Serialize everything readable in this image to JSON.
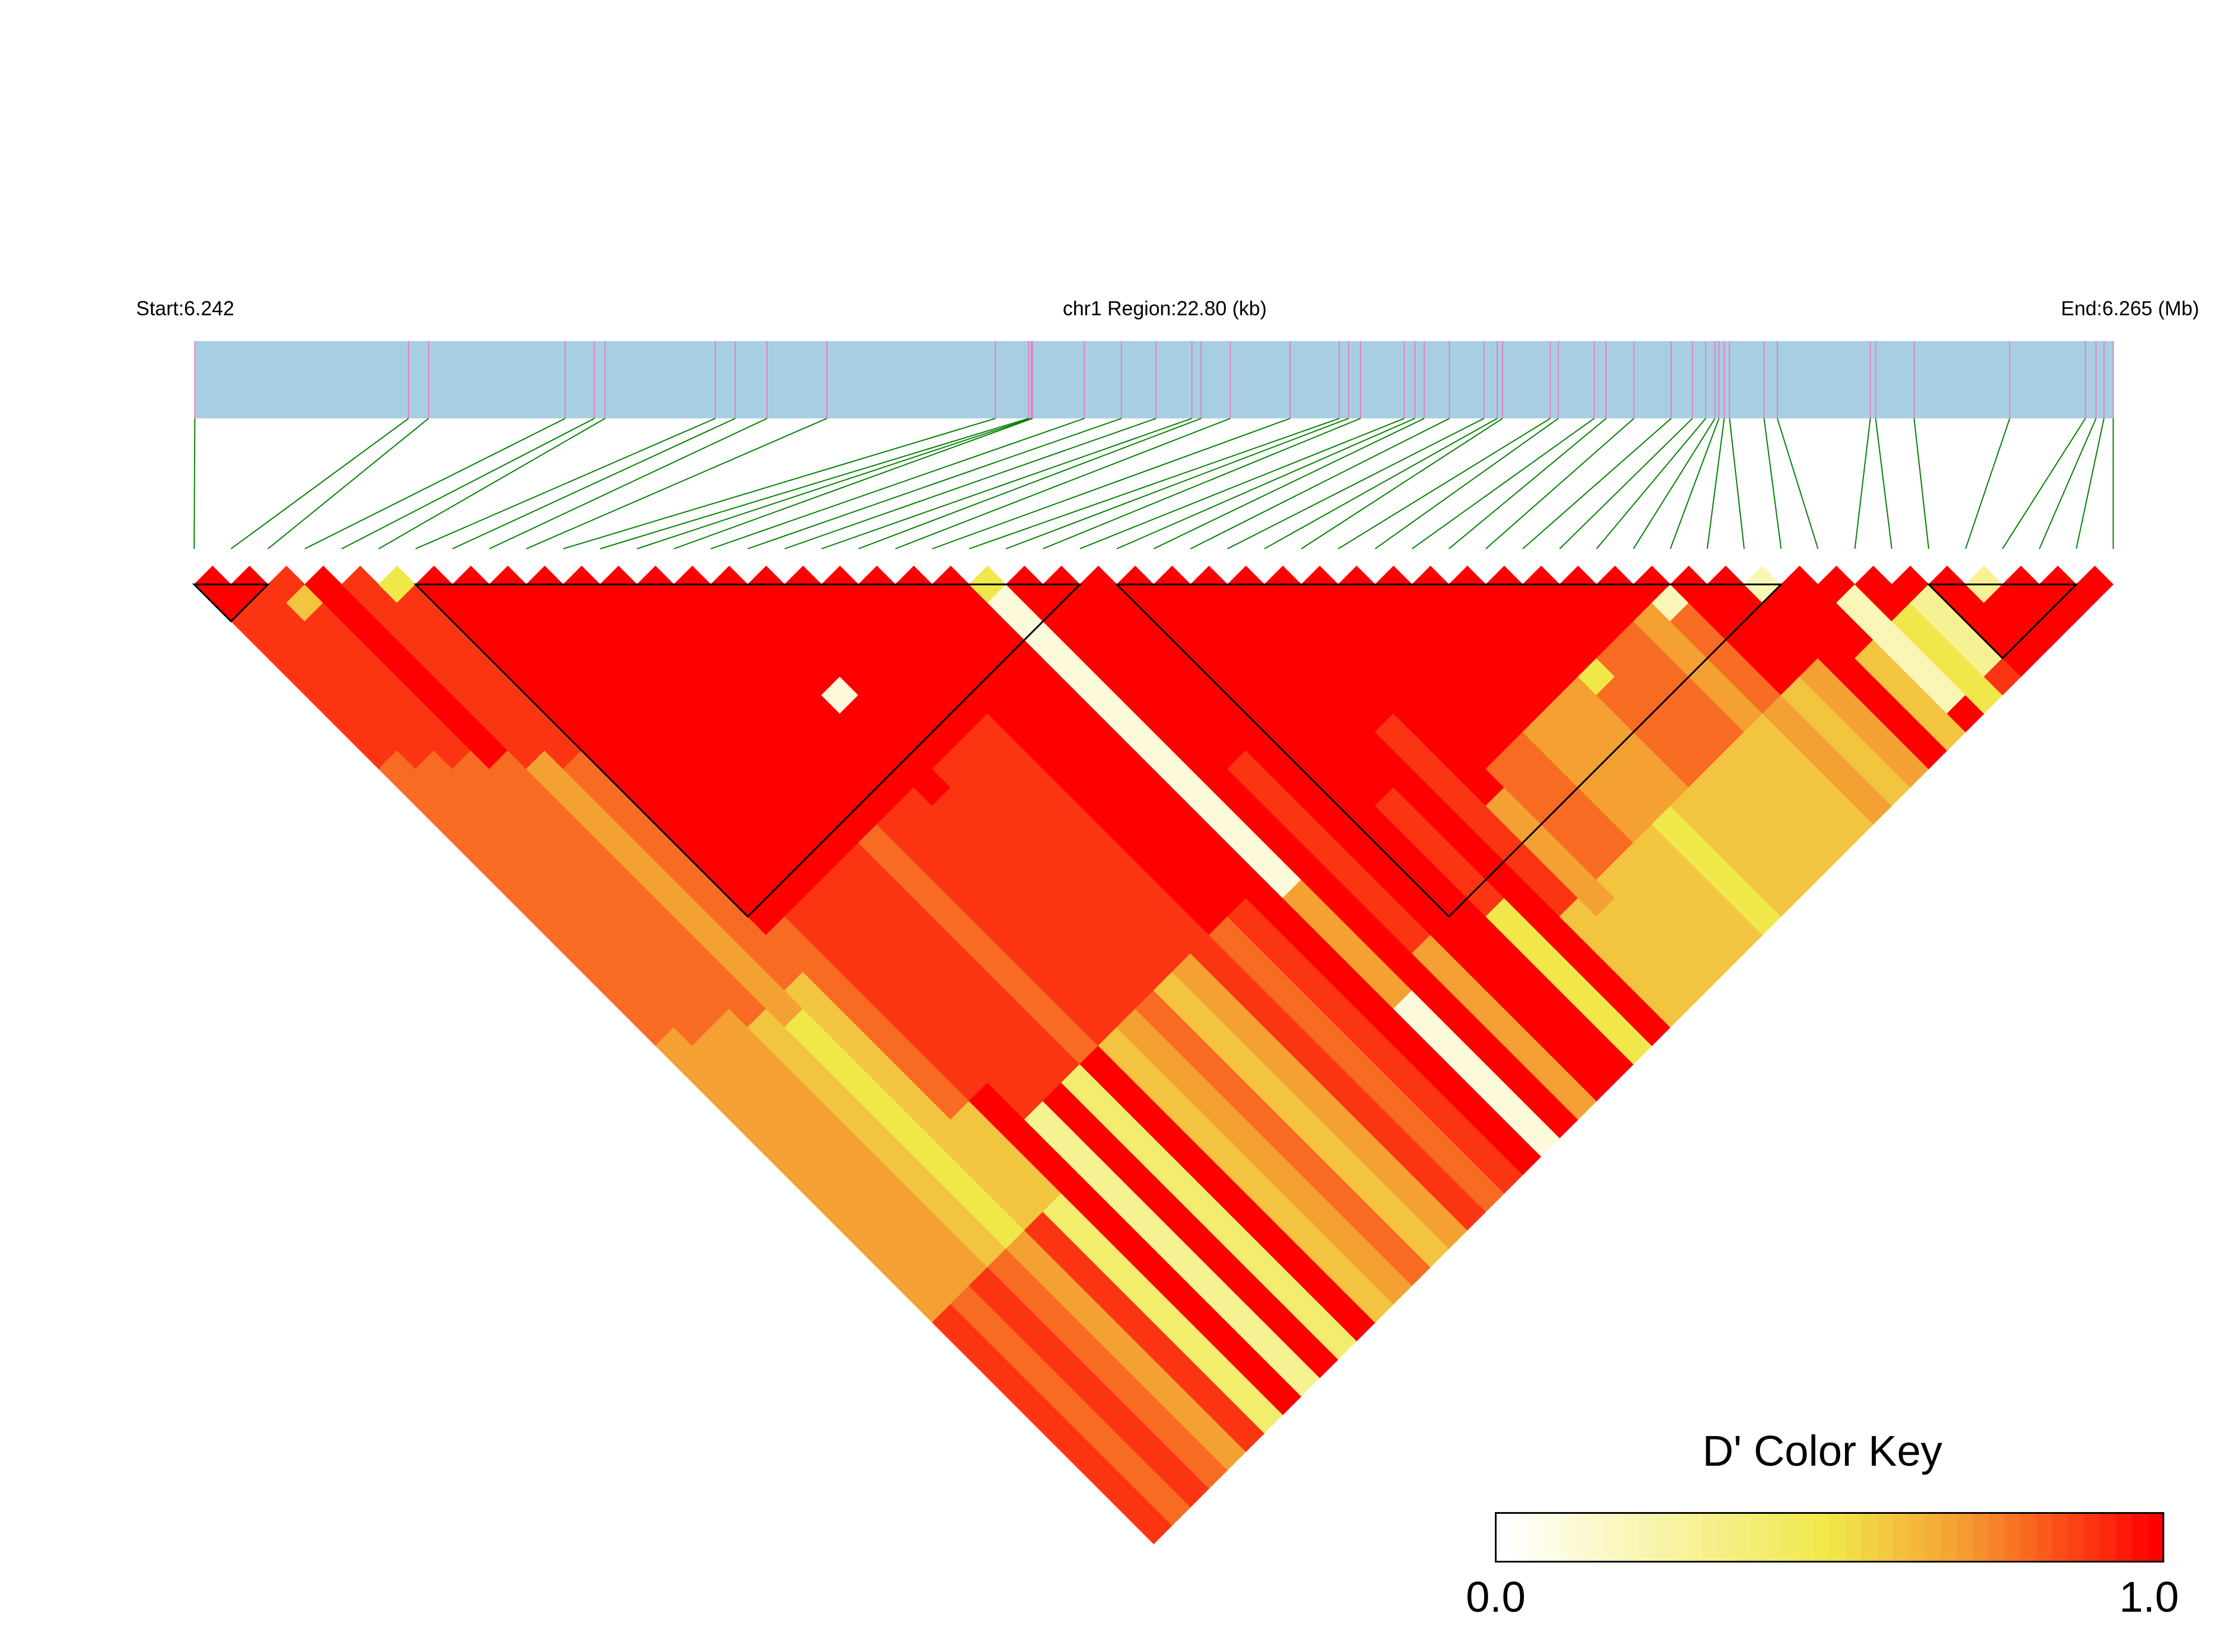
{
  "chart_data": {
    "type": "heatmap",
    "title": "",
    "region_label": "chr1 Region:22.80 (kb)",
    "start_label": "Start:6.242",
    "end_label": "End:6.265 (Mb)",
    "chromosome": "chr1",
    "region_start_mb": 6.242,
    "region_end_mb": 6.2648,
    "snp_positions_mb": [
      6.242,
      6.24454,
      6.244777,
      6.246402,
      6.246749,
      6.246876,
      6.248185,
      6.248422,
      6.2488,
      6.249511,
      6.251515,
      6.251909,
      6.251941,
      6.251956,
      6.252572,
      6.253013,
      6.253424,
      6.25385,
      6.25396,
      6.254307,
      6.255017,
      6.255601,
      6.255712,
      6.255854,
      6.256374,
      6.2565,
      6.256611,
      6.256911,
      6.257321,
      6.257479,
      6.257542,
      6.25811,
      6.258205,
      6.258631,
      6.258773,
      6.259104,
      6.259546,
      6.259799,
      6.259956,
      6.260067,
      6.260114,
      6.260177,
      6.26024,
      6.26065,
      6.260808,
      6.261913,
      6.261976,
      6.262433,
      6.26357,
      6.264469,
      6.264595,
      6.26469,
      6.2648
    ],
    "ld_measure": "D'",
    "dprime_upper_rows": [
      [
        1,
        1,
        0.9,
        0.9,
        0.9,
        0.9,
        0.9,
        0.9,
        0.9,
        0.9,
        0.8,
        0.8,
        0.8,
        0.8,
        0.8,
        0.8,
        0.8,
        0.8,
        0.8,
        0.8,
        0.8,
        0.8,
        0.8,
        0.8,
        0.8,
        0.7,
        0.7,
        0.7,
        0.7,
        0.7,
        0.7,
        0.7,
        0.7,
        0.7,
        0.7,
        0.7,
        0.7,
        0.7,
        0.7,
        0.7,
        0.9,
        0.9,
        0.9,
        0.9,
        0.9,
        0.9,
        0.9,
        0.9,
        0.9,
        0.9,
        0.9,
        0.9
      ],
      [
        1,
        0.9,
        0.9,
        0.9,
        0.9,
        0.9,
        0.9,
        0.9,
        0.9,
        0.9,
        0.8,
        0.8,
        0.8,
        0.8,
        0.8,
        0.8,
        0.8,
        0.8,
        0.8,
        0.8,
        0.8,
        0.8,
        0.8,
        0.8,
        0.8,
        0.7,
        0.7,
        0.7,
        0.7,
        0.7,
        0.7,
        0.7,
        0.7,
        0.7,
        0.7,
        0.7,
        0.7,
        0.7,
        0.7,
        0.8,
        0.8,
        0.8,
        0.8,
        0.8,
        0.8,
        0.8,
        0.8,
        0.8,
        0.8,
        0.8,
        0.8
      ],
      [
        0.9,
        0.6,
        0.9,
        0.9,
        0.9,
        0.9,
        0.9,
        0.9,
        0.9,
        0.9,
        0.8,
        0.8,
        0.8,
        0.8,
        0.8,
        0.8,
        0.8,
        0.8,
        0.8,
        0.8,
        0.8,
        0.8,
        0.8,
        0.8,
        0.7,
        0.7,
        0.7,
        0.7,
        0.7,
        0.7,
        0.7,
        0.7,
        0.7,
        0.7,
        0.7,
        0.7,
        0.7,
        0.7,
        0.9,
        0.9,
        0.9,
        0.9,
        0.9,
        0.9,
        0.9,
        0.9,
        0.9,
        0.9,
        0.9,
        0.9
      ],
      [
        1,
        1,
        1,
        1,
        1,
        1,
        1,
        1,
        1,
        1,
        0.8,
        0.8,
        0.8,
        0.8,
        0.8,
        0.8,
        0.8,
        0.8,
        0.8,
        0.8,
        0.8,
        0.8,
        0.8,
        0.8,
        0.6,
        0.6,
        0.6,
        0.6,
        0.6,
        0.6,
        0.6,
        0.6,
        0.6,
        0.6,
        0.6,
        0.6,
        0.6,
        0.8,
        0.8,
        0.8,
        0.8,
        0.8,
        0.8,
        0.8,
        0.8,
        0.8,
        0.8,
        0.8,
        0.8
      ],
      [
        0.9,
        0.9,
        0.9,
        0.9,
        0.9,
        0.9,
        0.9,
        0.9,
        0.9,
        0.9,
        0.7,
        0.7,
        0.7,
        0.7,
        0.7,
        0.7,
        0.7,
        0.7,
        0.7,
        0.7,
        0.7,
        0.7,
        0.7,
        0.7,
        0.5,
        0.5,
        0.5,
        0.5,
        0.5,
        0.5,
        0.5,
        0.5,
        0.5,
        0.5,
        0.5,
        0.5,
        0.7,
        0.7,
        0.7,
        0.7,
        0.7,
        0.7,
        0.7,
        0.7,
        0.7,
        0.7,
        0.7,
        0.7
      ],
      [
        0.5,
        0.9,
        0.9,
        0.9,
        0.9,
        0.9,
        0.9,
        0.9,
        0.9,
        0.9,
        0.8,
        0.8,
        0.8,
        0.8,
        0.8,
        0.8,
        0.8,
        0.8,
        0.8,
        0.8,
        0.8,
        0.8,
        0.6,
        0.6,
        0.6,
        0.6,
        0.6,
        0.6,
        0.6,
        0.6,
        0.6,
        0.6,
        0.6,
        0.6,
        0.6,
        0.9,
        0.9,
        0.9,
        0.9,
        0.9,
        0.9,
        0.9,
        0.9,
        0.9,
        0.9,
        0.9,
        0.9
      ],
      [
        1,
        1,
        1,
        1,
        1,
        1,
        1,
        1,
        1,
        1,
        1,
        1,
        1,
        1,
        1,
        1,
        1,
        1,
        1,
        0.8,
        0.8,
        0.8,
        0.8,
        0.8,
        0.8,
        0.8,
        0.8,
        0.8,
        0.8,
        0.6,
        0.6,
        0.6,
        0.6,
        0.6,
        0.4,
        0.4,
        0.4,
        0.4,
        0.4,
        0.4,
        0.4,
        0.4,
        0.4,
        0.4,
        0.4,
        0.4
      ],
      [
        1,
        1,
        1,
        1,
        1,
        1,
        1,
        1,
        1,
        1,
        1,
        1,
        1,
        1,
        1,
        1,
        1,
        1,
        0.9,
        0.9,
        0.9,
        0.9,
        0.9,
        0.9,
        0.9,
        0.9,
        0.9,
        0.9,
        1,
        1,
        1,
        1,
        1,
        1,
        1,
        1,
        1,
        1,
        1,
        1,
        1,
        1,
        1,
        1,
        1
      ],
      [
        1,
        1,
        1,
        1,
        1,
        1,
        1,
        1,
        1,
        1,
        1,
        1,
        1,
        1,
        1,
        1,
        1,
        0.9,
        0.9,
        0.9,
        0.9,
        0.9,
        0.9,
        0.9,
        0.9,
        0.9,
        0.9,
        0.9,
        0.9,
        0.3,
        0.3,
        0.3,
        0.3,
        0.3,
        0.3,
        0.3,
        0.3,
        0.3,
        0.3,
        0.3,
        0.3,
        0.3,
        0.3,
        0.3
      ],
      [
        1,
        1,
        1,
        1,
        1,
        1,
        1,
        1,
        1,
        1,
        1,
        1,
        1,
        1,
        1,
        1,
        0.9,
        0.9,
        0.9,
        0.9,
        0.9,
        0.9,
        0.9,
        0.9,
        0.9,
        0.9,
        0.9,
        0.9,
        1,
        1,
        1,
        1,
        1,
        1,
        1,
        1,
        1,
        1,
        1,
        1,
        1,
        1,
        1
      ],
      [
        1,
        1,
        1,
        1,
        1,
        1,
        1,
        1,
        1,
        1,
        1,
        1,
        1,
        1,
        1,
        0.9,
        0.9,
        0.9,
        0.9,
        0.9,
        0.9,
        0.9,
        0.9,
        0.9,
        0.9,
        0.9,
        0.9,
        0.4,
        0.4,
        0.4,
        0.4,
        0.4,
        0.4,
        0.4,
        0.4,
        0.4,
        0.4,
        0.4,
        0.4,
        0.4,
        0.4,
        0.4
      ],
      [
        1,
        1,
        1,
        1,
        1,
        1,
        1,
        1,
        1,
        1,
        1,
        1,
        1,
        1,
        0.8,
        0.8,
        0.8,
        0.8,
        0.8,
        0.8,
        0.8,
        0.8,
        0.8,
        0.8,
        0.8,
        0.8,
        1,
        1,
        1,
        1,
        1,
        1,
        1,
        1,
        1,
        1,
        1,
        1,
        1,
        1,
        1
      ],
      [
        1,
        1,
        1,
        1,
        1,
        1,
        1,
        1,
        1,
        1,
        1,
        1,
        1,
        0.9,
        0.9,
        0.9,
        0.9,
        0.9,
        0.9,
        0.9,
        0.9,
        0.9,
        0.9,
        0.9,
        0.9,
        0.6,
        0.6,
        0.6,
        0.6,
        0.6,
        0.6,
        0.6,
        0.6,
        0.6,
        0.6,
        0.6,
        0.6,
        0.6,
        0.6,
        0.6
      ],
      [
        1,
        1,
        1,
        1,
        1,
        1,
        1,
        1,
        1,
        1,
        1,
        1,
        0.9,
        0.9,
        0.9,
        0.9,
        0.9,
        0.9,
        0.9,
        0.9,
        0.9,
        0.9,
        0.9,
        0.9,
        0.7,
        0.7,
        0.7,
        0.7,
        0.7,
        0.7,
        0.7,
        0.7,
        0.7,
        0.7,
        0.7,
        0.7,
        0.7,
        0.7,
        0.7
      ],
      [
        1,
        1,
        1,
        1,
        1,
        1,
        0.1,
        1,
        1,
        1,
        1,
        1,
        0.9,
        0.9,
        0.9,
        0.9,
        0.9,
        0.9,
        0.9,
        0.9,
        0.9,
        0.9,
        0.9,
        0.8,
        0.8,
        0.8,
        0.8,
        0.8,
        0.8,
        0.8,
        0.8,
        0.8,
        0.8,
        0.8,
        0.8,
        0.8,
        0.8,
        0.8
      ],
      [
        1,
        1,
        1,
        1,
        1,
        1,
        1,
        1,
        1,
        1,
        0.9,
        0.9,
        0.9,
        0.9,
        0.9,
        0.9,
        0.9,
        0.9,
        0.9,
        0.9,
        0.9,
        0.9,
        0.6,
        0.6,
        0.6,
        0.6,
        0.6,
        0.6,
        0.6,
        0.6,
        0.6,
        0.6,
        0.6,
        0.6,
        0.6,
        0.6,
        0.6
      ],
      [
        1,
        1,
        1,
        1,
        1,
        1,
        1,
        1,
        1,
        0.9,
        0.9,
        0.9,
        0.9,
        0.9,
        0.9,
        0.9,
        0.9,
        0.9,
        0.9,
        0.9,
        0.9,
        0.7,
        0.7,
        0.7,
        0.7,
        0.7,
        0.7,
        0.7,
        0.7,
        0.7,
        0.7,
        0.7,
        0.7,
        0.7,
        0.7,
        0.7
      ],
      [
        1,
        1,
        1,
        1,
        1,
        1,
        1,
        1,
        0.9,
        0.9,
        0.9,
        0.9,
        0.9,
        0.9,
        0.9,
        0.9,
        0.9,
        0.9,
        0.9,
        0.9,
        0.9,
        0.9,
        0.9,
        0.9,
        0.9,
        0.9,
        0.9,
        0.9,
        0.9,
        0.9,
        0.9,
        0.9,
        0.9,
        0.9,
        0.9
      ],
      [
        1,
        1,
        1,
        1,
        1,
        1,
        1,
        1,
        1,
        1,
        1,
        1,
        1,
        1,
        1,
        1,
        1,
        1,
        1,
        0.8,
        0.8,
        0.8,
        0.8,
        0.8,
        0.8,
        0.8,
        0.8,
        0.8,
        0.8,
        0.8,
        0.8,
        0.8,
        0.8,
        0.8
      ],
      [
        1,
        1,
        1,
        1,
        1,
        1,
        1,
        1,
        1,
        1,
        1,
        1,
        1,
        1,
        1,
        1,
        1,
        1,
        0.9,
        0.9,
        0.9,
        0.9,
        0.9,
        0.9,
        0.9,
        0.9,
        0.9,
        0.9,
        0.9,
        0.9,
        0.9,
        0.9,
        0.9
      ],
      [
        1,
        1,
        1,
        1,
        1,
        1,
        1,
        1,
        1,
        1,
        1,
        1,
        1,
        1,
        1,
        1,
        1,
        1,
        1,
        1,
        1,
        1,
        1,
        1,
        1,
        1,
        1,
        1,
        1,
        1,
        1,
        1
      ],
      [
        0.5,
        0.1,
        0.1,
        0.1,
        0.1,
        0.1,
        0.1,
        0.1,
        0.1,
        0.1,
        0.1,
        0.1,
        0.1,
        0.1,
        0.1,
        0.1,
        0.1,
        0.7,
        0.7,
        0.7,
        0.7,
        0.7,
        0.7,
        0.1,
        0.1,
        0.1,
        0.1,
        0.1,
        0.1,
        0.1,
        0.1
      ],
      [
        1,
        1,
        1,
        1,
        1,
        1,
        1,
        1,
        1,
        1,
        1,
        1,
        1,
        1,
        1,
        1,
        1,
        1,
        1,
        1,
        1,
        1,
        1,
        1,
        1,
        1,
        1,
        1,
        1,
        1
      ],
      [
        1,
        1,
        1,
        1,
        1,
        1,
        1,
        1,
        1,
        1,
        0.9,
        0.9,
        0.9,
        0.9,
        0.9,
        0.9,
        0.9,
        0.9,
        0.9,
        0.9,
        0.7,
        0.7,
        0.7,
        0.7,
        0.7,
        0.7,
        0.7,
        0.7,
        0.7
      ],
      [
        1,
        1,
        1,
        1,
        1,
        1,
        1,
        1,
        1,
        1,
        1,
        1,
        1,
        1,
        1,
        1,
        1,
        1,
        1,
        1,
        1,
        1,
        1,
        1,
        1,
        1,
        1,
        1
      ],
      [
        1,
        1,
        1,
        1,
        1,
        1,
        1,
        1,
        1,
        1,
        1,
        1,
        1,
        1,
        1,
        1,
        1,
        1,
        1,
        1,
        1,
        1,
        1,
        1,
        1,
        1,
        1
      ],
      [
        1,
        1,
        1,
        1,
        1,
        1,
        1,
        1,
        1,
        1,
        1,
        1,
        0.9,
        0.9,
        0.9,
        0.9,
        0.9,
        0.9,
        0.5,
        0.5,
        0.5,
        0.5,
        0.5,
        0.5,
        0.5,
        0.5
      ],
      [
        1,
        1,
        1,
        1,
        1,
        1,
        1,
        1,
        1,
        1,
        1,
        1,
        1,
        1,
        1,
        1,
        1,
        1,
        1,
        1,
        1,
        1,
        1,
        1,
        1
      ],
      [
        1,
        1,
        1,
        1,
        1,
        1,
        1,
        1,
        0.9,
        0.9,
        0.9,
        0.9,
        0.9,
        0.9,
        0.9,
        0.9,
        0.9,
        0.9,
        0.6,
        0.6,
        0.6,
        0.6,
        0.6,
        0.6
      ],
      [
        1,
        1,
        1,
        1,
        1,
        1,
        1,
        1,
        1,
        1,
        1,
        1,
        0.7,
        0.7,
        0.7,
        0.7,
        0.7,
        0.7,
        0.6,
        0.6,
        0.6,
        0.6,
        0.6
      ],
      [
        1,
        1,
        1,
        1,
        1,
        1,
        1,
        1,
        1,
        1,
        0.8,
        0.8,
        0.8,
        0.8,
        0.8,
        0.8,
        0.6,
        0.6,
        0.6,
        0.6,
        0.6,
        0.6
      ],
      [
        1,
        1,
        1,
        1,
        1,
        1,
        1,
        1,
        1,
        0.8,
        0.8,
        0.8,
        0.8,
        0.8,
        0.8,
        0.6,
        0.6,
        0.6,
        0.6,
        0.6,
        0.6
      ],
      [
        1,
        1,
        1,
        1,
        1,
        1,
        1,
        1,
        0.7,
        0.7,
        0.7,
        0.7,
        0.7,
        0.7,
        0.6,
        0.6,
        0.6,
        0.6,
        0.6,
        0.6
      ],
      [
        1,
        1,
        1,
        1,
        1,
        1,
        1,
        0.7,
        0.7,
        0.7,
        0.7,
        0.7,
        0.7,
        0.5,
        0.5,
        0.5,
        0.5,
        0.5,
        0.5
      ],
      [
        1,
        1,
        1,
        1,
        1,
        1,
        0.7,
        0.7,
        0.7,
        0.7,
        0.7,
        0.7,
        0.6,
        0.6,
        0.6,
        0.6,
        0.6,
        0.6
      ],
      [
        1,
        1,
        1,
        1,
        1,
        0.5,
        0.8,
        0.8,
        0.8,
        0.8,
        0.8,
        0.6,
        0.6,
        0.6,
        0.6,
        0.6,
        0.6
      ],
      [
        1,
        1,
        1,
        1,
        0.8,
        0.8,
        0.8,
        0.8,
        0.8,
        0.8,
        0.6,
        0.6,
        0.6,
        0.6,
        0.6,
        0.6
      ],
      [
        1,
        1,
        1,
        0.8,
        0.8,
        0.8,
        0.8,
        0.8,
        0.8,
        0.6,
        0.6,
        0.6,
        0.6,
        0.6,
        0.6
      ],
      [
        1,
        1,
        0.7,
        0.7,
        0.7,
        0.7,
        0.7,
        0.7,
        0.6,
        0.6,
        0.6,
        0.6,
        0.6,
        0.6
      ],
      [
        1,
        0.2,
        0.8,
        0.8,
        0.8,
        0.8,
        0.8,
        0.7,
        0.7,
        0.7,
        0.7,
        0.7,
        0.7
      ],
      [
        1,
        1,
        1,
        1,
        1,
        1,
        0.6,
        0.6,
        0.6,
        0.6,
        0.6,
        0.6
      ],
      [
        1,
        1,
        1,
        1,
        1,
        0.7,
        0.7,
        0.7,
        0.7,
        0.7,
        0.7
      ],
      [
        0.2,
        1,
        1,
        1,
        1,
        1,
        1,
        1,
        1,
        1
      ],
      [
        1,
        1,
        1,
        1,
        0.6,
        0.6,
        0.6,
        0.6,
        0.6
      ],
      [
        1,
        0.2,
        0.2,
        0.2,
        0.2,
        0.2,
        0.2,
        1
      ],
      [
        1,
        1,
        0.5,
        0.5,
        0.5,
        0.5,
        0.5
      ],
      [
        1,
        0.3,
        0.3,
        0.3,
        0.3,
        0.9
      ],
      [
        1,
        1,
        1,
        1,
        1
      ],
      [
        0.3,
        1,
        1,
        1
      ],
      [
        1,
        1,
        1
      ],
      [
        1,
        1
      ],
      [
        1
      ]
    ],
    "ld_blocks_snp_index": [
      [
        0,
        2
      ],
      [
        6,
        24
      ],
      [
        25,
        43
      ],
      [
        47,
        51
      ]
    ],
    "color_key": {
      "title": "D' Color Key",
      "min_label": "0.0",
      "max_label": "1.0",
      "range": [
        0,
        1
      ],
      "stops": [
        "#ffffff",
        "#f0e84a",
        "#f4a033",
        "#ff0000"
      ]
    },
    "colors": {
      "region_bar": "#a8cfe1",
      "snp_tick": "#e57fc0",
      "connector": "#008000",
      "block_outline": "#000000"
    }
  }
}
